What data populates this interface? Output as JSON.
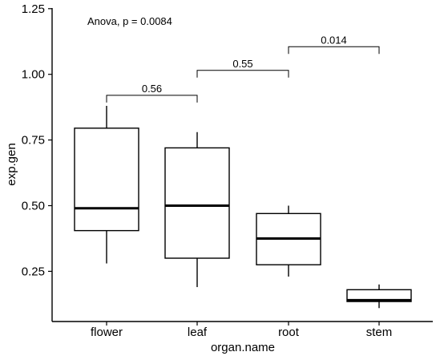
{
  "chart_data": {
    "type": "box",
    "xlabel": "organ.name",
    "ylabel": "exp.gen",
    "categories": [
      "flower",
      "leaf",
      "root",
      "stem"
    ],
    "ylim": [
      0.08,
      1.25
    ],
    "yticks": [
      0.25,
      0.5,
      0.75,
      1.0,
      1.25
    ],
    "ytick_labels": [
      "0.25",
      "0.50",
      "0.75",
      "1.00",
      "1.25"
    ],
    "boxes": [
      {
        "category": "flower",
        "min": 0.28,
        "q1": 0.405,
        "median": 0.49,
        "q3": 0.795,
        "max": 0.88
      },
      {
        "category": "leaf",
        "min": 0.19,
        "q1": 0.3,
        "median": 0.5,
        "q3": 0.72,
        "max": 0.78
      },
      {
        "category": "root",
        "min": 0.23,
        "q1": 0.275,
        "median": 0.375,
        "q3": 0.47,
        "max": 0.5
      },
      {
        "category": "stem",
        "min": 0.11,
        "q1": 0.135,
        "median": 0.14,
        "q3": 0.18,
        "max": 0.2
      }
    ],
    "annotations": {
      "anova": "Anova, p = 0.0084",
      "comparisons": [
        {
          "from": "flower",
          "to": "leaf",
          "label": "0.56",
          "y": 0.92
        },
        {
          "from": "leaf",
          "to": "root",
          "label": "0.55",
          "y": 1.015
        },
        {
          "from": "root",
          "to": "stem",
          "label": "0.014",
          "y": 1.105
        }
      ]
    },
    "grid": false,
    "legend": "none"
  }
}
